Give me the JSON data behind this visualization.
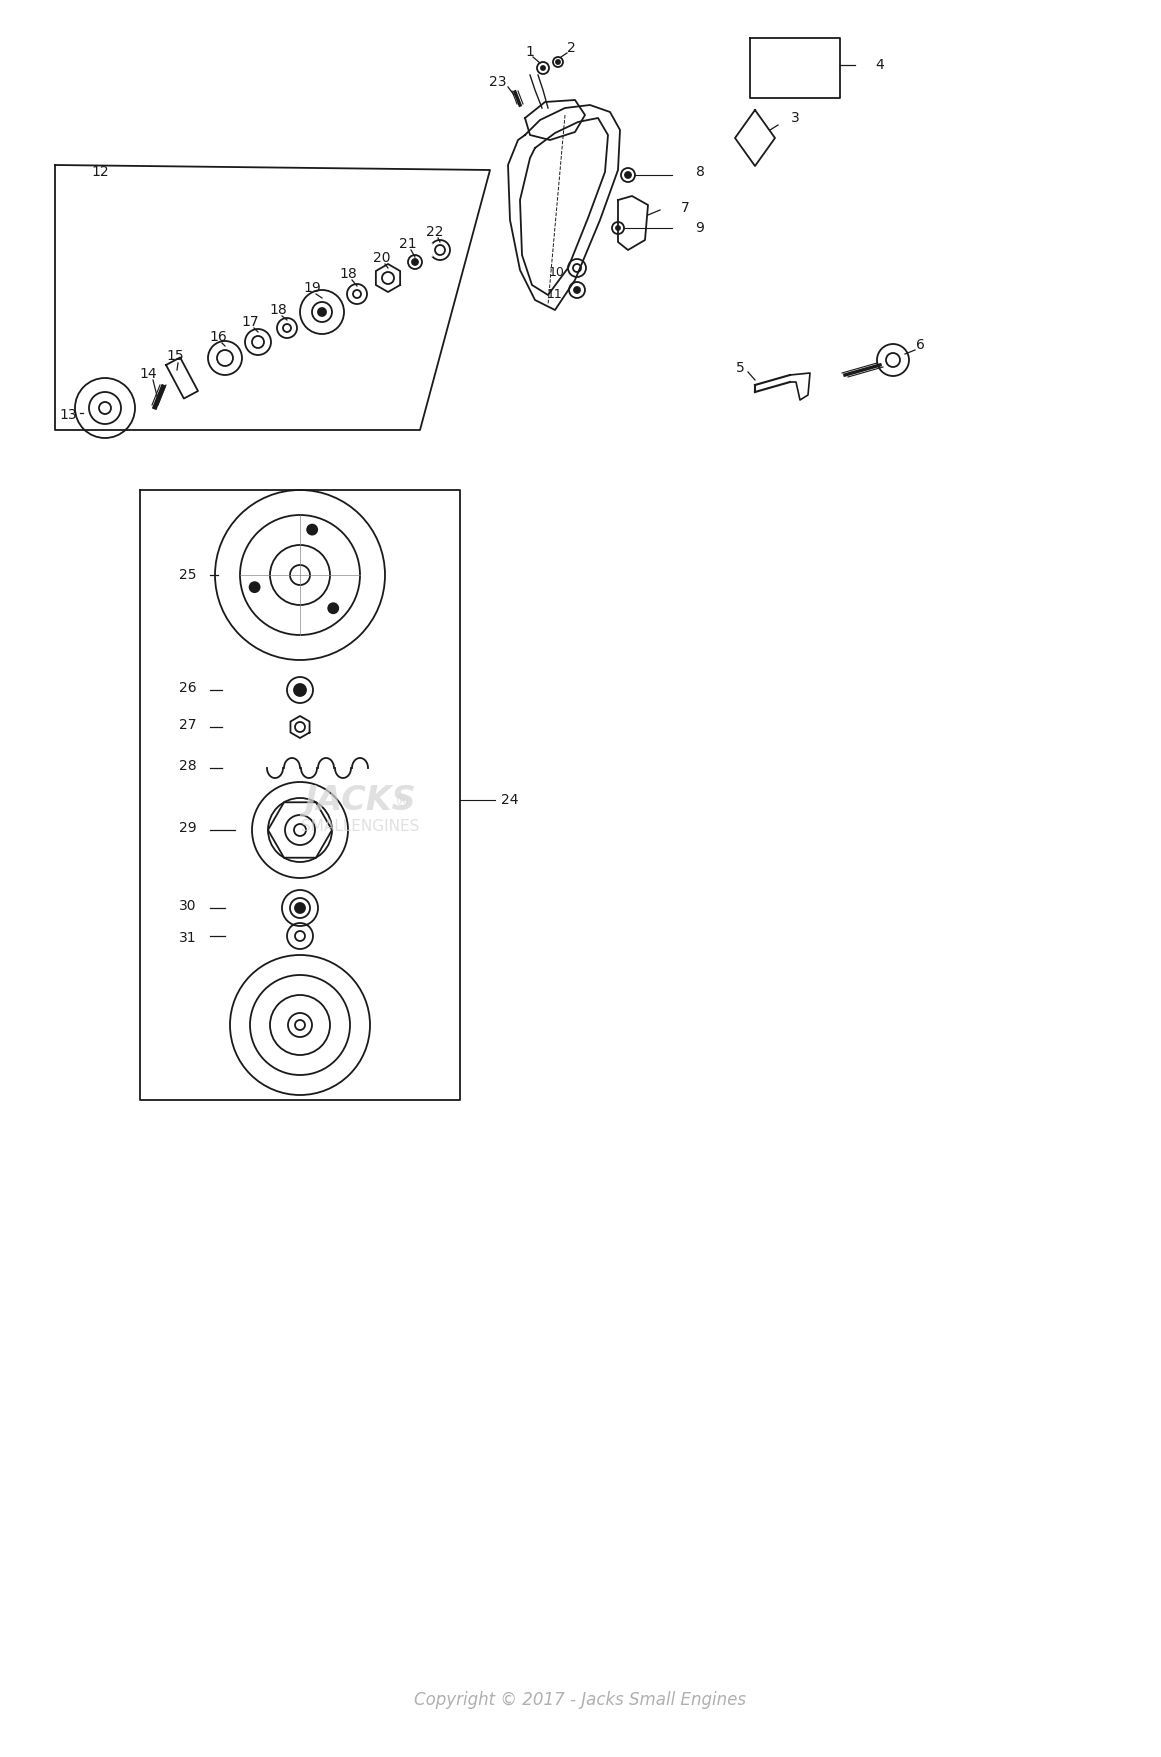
{
  "background_color": "#ffffff",
  "copyright_text": "Copyright © 2017 - Jacks Small Engines",
  "copyright_color": "#b0b0b0",
  "line_color": "#1a1a1a",
  "label_fontsize": 10,
  "fig_width": 11.61,
  "fig_height": 17.57,
  "dpi": 100
}
